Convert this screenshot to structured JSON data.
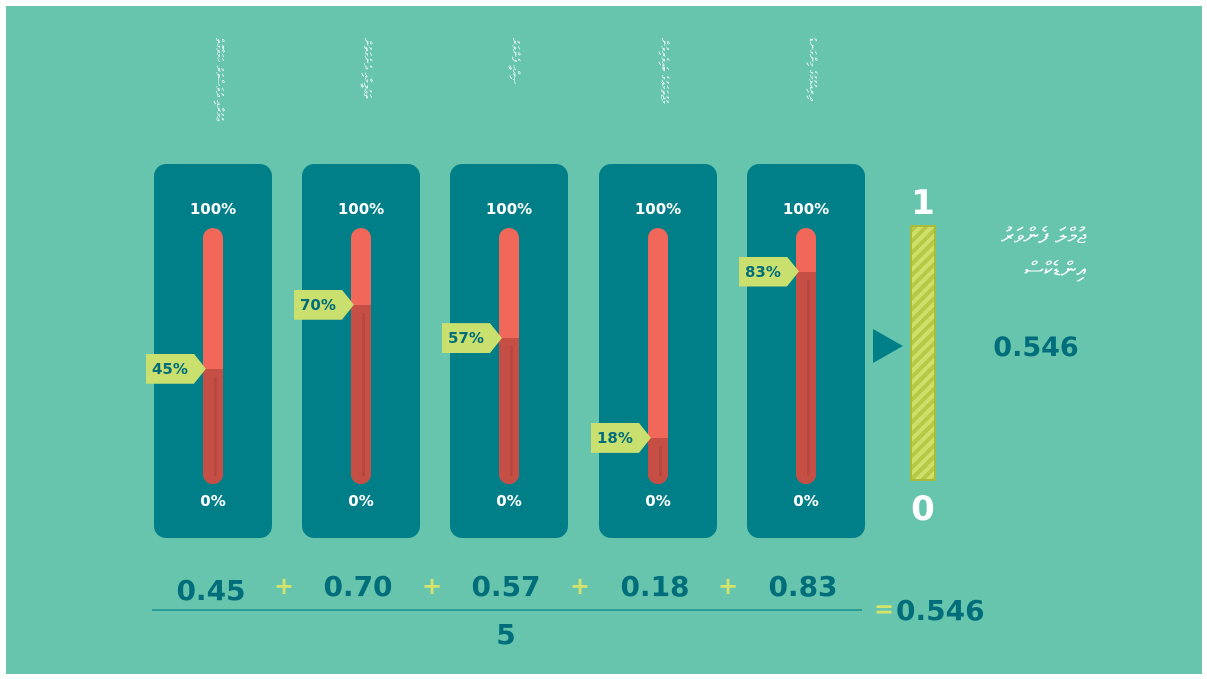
{
  "indicators": [
    {
      "label": "ޢުމުރާއި ދުވަސްވަރު ހަމަވާގޮތް",
      "value": 0.45,
      "tag": "45%",
      "top": "100%",
      "bottom": "0%",
      "formula": "0.45"
    },
    {
      "label": "ތަޢުލީމާއި ދެނެގަތުން",
      "value": 0.7,
      "tag": "70%",
      "top": "100%",
      "bottom": "0%",
      "formula": "0.70"
    },
    {
      "label": "ޞިއްޙީ ފެންވަރު",
      "value": 0.57,
      "tag": "57%",
      "top": "100%",
      "bottom": "0%",
      "formula": "0.57"
    },
    {
      "label": "މުޖުތަމަޢުގެ ބައިވެރިވުން",
      "value": 0.18,
      "tag": "18%",
      "top": "100%",
      "bottom": "0%",
      "formula": "0.18"
    },
    {
      "label": "ދިރިއުޅުމުގެ މިންގަނޑު",
      "value": 0.83,
      "tag": "83%",
      "top": "100%",
      "bottom": "0%",
      "formula": "0.83"
    }
  ],
  "result": {
    "scale_top": "1",
    "scale_bottom": "0",
    "label_line1": "ޖުމްލަ ފެންވަރު",
    "label_line2": "އިންޑެކްސް",
    "value": "0.546"
  },
  "equation": {
    "plus": "+",
    "divisor": "5",
    "equals": "=",
    "result": "0.546"
  },
  "colors": {
    "background": "#67c4ad",
    "panel": "#007f88",
    "gauge_empty": "#f1675a",
    "gauge_fill": "#c64f45",
    "tag": "#c9df6e",
    "text_dark": "#006d7a"
  }
}
